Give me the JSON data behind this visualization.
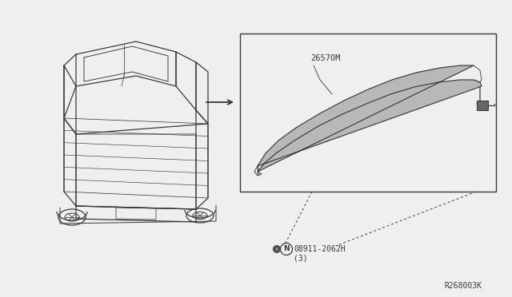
{
  "bg_color": "#efefef",
  "line_color": "#3a3a3a",
  "diagram_id": "R268003K",
  "part_label_1": "26570M",
  "part_label_2": "08911-2062H",
  "part_label_2_sub": "(3)",
  "note_n_label": "N"
}
